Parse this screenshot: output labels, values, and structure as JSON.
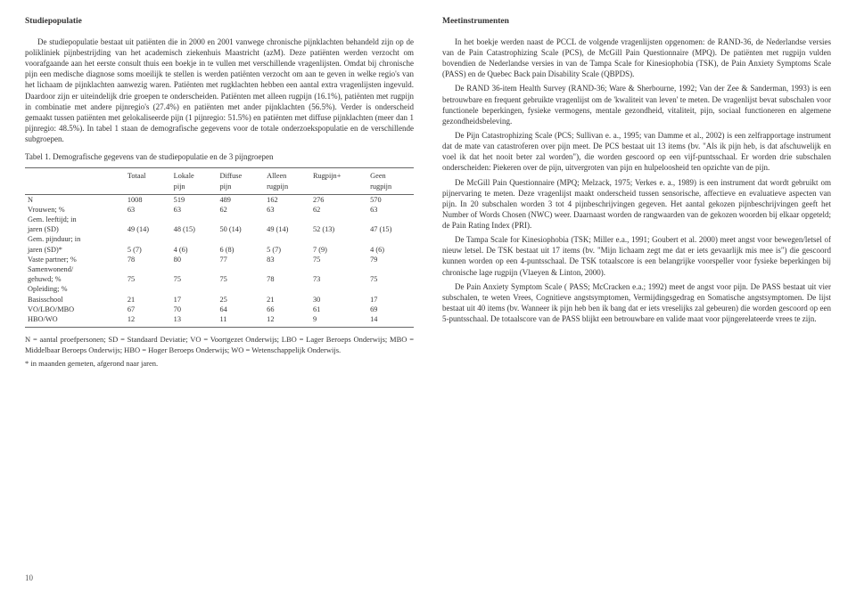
{
  "left": {
    "heading": "Studiepopulatie",
    "p1": "De studiepopulatie bestaat uit patiënten die in 2000 en 2001 vanwege chronische pijnklachten behandeld zijn op de polikliniek pijnbestrijding van het academisch ziekenhuis Maastricht (azM). Deze patiënten werden verzocht om voorafgaande aan het eerste consult thuis een boekje in te vullen met verschillende vragenlijsten. Omdat bij chronische pijn een medische diagnose soms moeilijk te stellen is werden patiënten verzocht om aan te geven in welke regio's van het lichaam de pijnklachten aanwezig waren. Patiënten met rugklachten hebben een aantal extra vragenlijsten ingevuld. Daardoor zijn er uiteindelijk drie groepen te onderscheiden. Patiënten met alleen rugpijn (16.1%), patiënten met rugpijn in combinatie met andere pijnregio's (27.4%) en patiënten met ander pijnklachten (56.5%). Verder is onderscheid gemaakt tussen patiënten met gelokaliseerde pijn (1 pijnregio: 51.5%) en patiënten met diffuse pijnklachten (meer dan 1 pijnregio: 48.5%). In tabel 1 staan de demografische gegevens voor de totale onderzoekspopulatie en de verschillende subgroepen.",
    "tableCaption": "Tabel 1. Demografische gegevens van de studiepopulatie en de 3 pijngroepen",
    "tableHeader1": [
      "",
      "Totaal",
      "Lokale",
      "Diffuse",
      "Alleen",
      "Rugpijn+",
      "Geen"
    ],
    "tableHeader2": [
      "",
      "",
      "pijn",
      "pijn",
      "rugpijn",
      "",
      "rugpijn"
    ],
    "rows": [
      [
        "N",
        "1008",
        "519",
        "489",
        "162",
        "276",
        "570"
      ],
      [
        "Vrouwen; %",
        "63",
        "63",
        "62",
        "63",
        "62",
        "63"
      ],
      [
        "Gem. leeftijd; in",
        "",
        "",
        "",
        "",
        "",
        ""
      ],
      [
        "jaren (SD)",
        "49 (14)",
        "48 (15)",
        "50 (14)",
        "49 (14)",
        "52 (13)",
        "47 (15)"
      ],
      [
        "Gem. pijnduur; in",
        "",
        "",
        "",
        "",
        "",
        ""
      ],
      [
        "jaren (SD)*",
        "5   (7)",
        "4   (6)",
        "6   (8)",
        "5   (7)",
        "7   (9)",
        "4   (6)"
      ],
      [
        "Vaste partner; %",
        "78",
        "80",
        "77",
        "83",
        "75",
        "79"
      ],
      [
        "Samenwonend/",
        "",
        "",
        "",
        "",
        "",
        ""
      ],
      [
        "gehuwd; %",
        "75",
        "75",
        "75",
        "78",
        "73",
        "75"
      ],
      [
        "Opleiding; %",
        "",
        "",
        "",
        "",
        "",
        ""
      ],
      [
        "Basisschool",
        "21",
        "17",
        "25",
        "21",
        "30",
        "17"
      ],
      [
        "VO/LBO/MBO",
        "67",
        "70",
        "64",
        "66",
        "61",
        "69"
      ],
      [
        "HBO/WO",
        "12",
        "13",
        "11",
        "12",
        "9",
        "14"
      ]
    ],
    "footnote1": "N = aantal proefpersonen; SD = Standaard Deviatie; VO = Voortgezet Onderwijs; LBO = Lager Beroeps Onderwijs; MBO = Middelbaar Beroeps Onderwijs; HBO = Hoger Beroeps Onderwijs; WO = Wetenschappelijk Onderwijs.",
    "footnote2": "* in maanden gemeten, afgerond naar jaren.",
    "pageNum": "10"
  },
  "right": {
    "heading": "Meetinstrumenten",
    "p1": "In het boekje werden naast de PCCL de volgende vragenlijsten opgenomen: de RAND-36, de Nederlandse versies van de Pain Catastrophizing Scale (PCS), de McGill Pain Questionnaire (MPQ). De patiënten met rugpijn vulden bovendien de Nederlandse versies in van de Tampa Scale for Kinesiophobia (TSK), de Pain Anxiety Symptoms Scale (PASS) en de Quebec Back pain Disability Scale (QBPDS).",
    "p2": "De RAND 36-item Health Survey (RAND-36; Ware & Sherbourne, 1992; Van der Zee & Sanderman, 1993) is een betrouwbare en frequent gebruikte vragenlijst om de 'kwaliteit van leven' te meten. De vragenlijst bevat subschalen voor functionele beperkingen, fysieke vermogens, mentale gezondheid, vitaliteit, pijn, sociaal functioneren en algemene gezondheidsbeleving.",
    "p3": "De Pijn Catastrophizing Scale (PCS; Sullivan e. a., 1995; van Damme et al., 2002) is een zelfrapportage instrument dat de mate van catastroferen over pijn meet. De PCS bestaat uit 13 items (bv. \"Als ik pijn heb, is dat afschuwelijk en voel ik dat het nooit beter zal worden\"), die worden gescoord op een vijf-puntsschaal. Er worden drie subschalen onderscheiden: Piekeren over de pijn, uitvergroten van pijn en hulpeloosheid ten opzichte van de pijn.",
    "p4": "De McGill Pain Questionnaire (MPQ; Melzack, 1975; Verkes e. a., 1989) is een instrument dat wordt gebruikt om pijnervaring te meten. Deze vragenlijst maakt onderscheid tussen sensorische, affectieve en evaluatieve aspecten van pijn. In 20 subschalen worden 3 tot 4 pijnbeschrijvingen gegeven. Het aantal gekozen pijnbeschrijvingen geeft het Number of Words Chosen (NWC) weer. Daarnaast worden de rangwaarden van de gekozen woorden bij elkaar opgeteld; de Pain Rating Index (PRI).",
    "p5": "De Tampa Scale for Kinesiophobia (TSK; Miller e.a., 1991; Goubert et al. 2000) meet angst voor bewegen/letsel of nieuw letsel. De TSK bestaat uit 17 items (bv. \"Mijn lichaam zegt me dat er iets gevaarlijk mis mee is\") die gescoord kunnen worden op een 4-puntsschaal. De TSK totaalscore is een belangrijke voorspeller voor fysieke beperkingen bij chronische lage rugpijn (Vlaeyen & Linton, 2000).",
    "p6": "De Pain Anxiety Symptom Scale ( PASS; McCracken e.a.; 1992) meet de angst voor pijn. De PASS bestaat uit vier subschalen, te weten Vrees, Cognitieve angstsymptomen, Vermijdingsgedrag en Somatische angstsymptomen. De lijst bestaat uit 40 items (bv. Wanneer ik pijn heb ben ik bang dat er iets vreselijks zal gebeuren) die worden gescoord op een 5-puntsschaal. De totaalscore van de PASS blijkt een betrouwbare en valide maat voor pijngerelateerde vrees te zijn."
  }
}
